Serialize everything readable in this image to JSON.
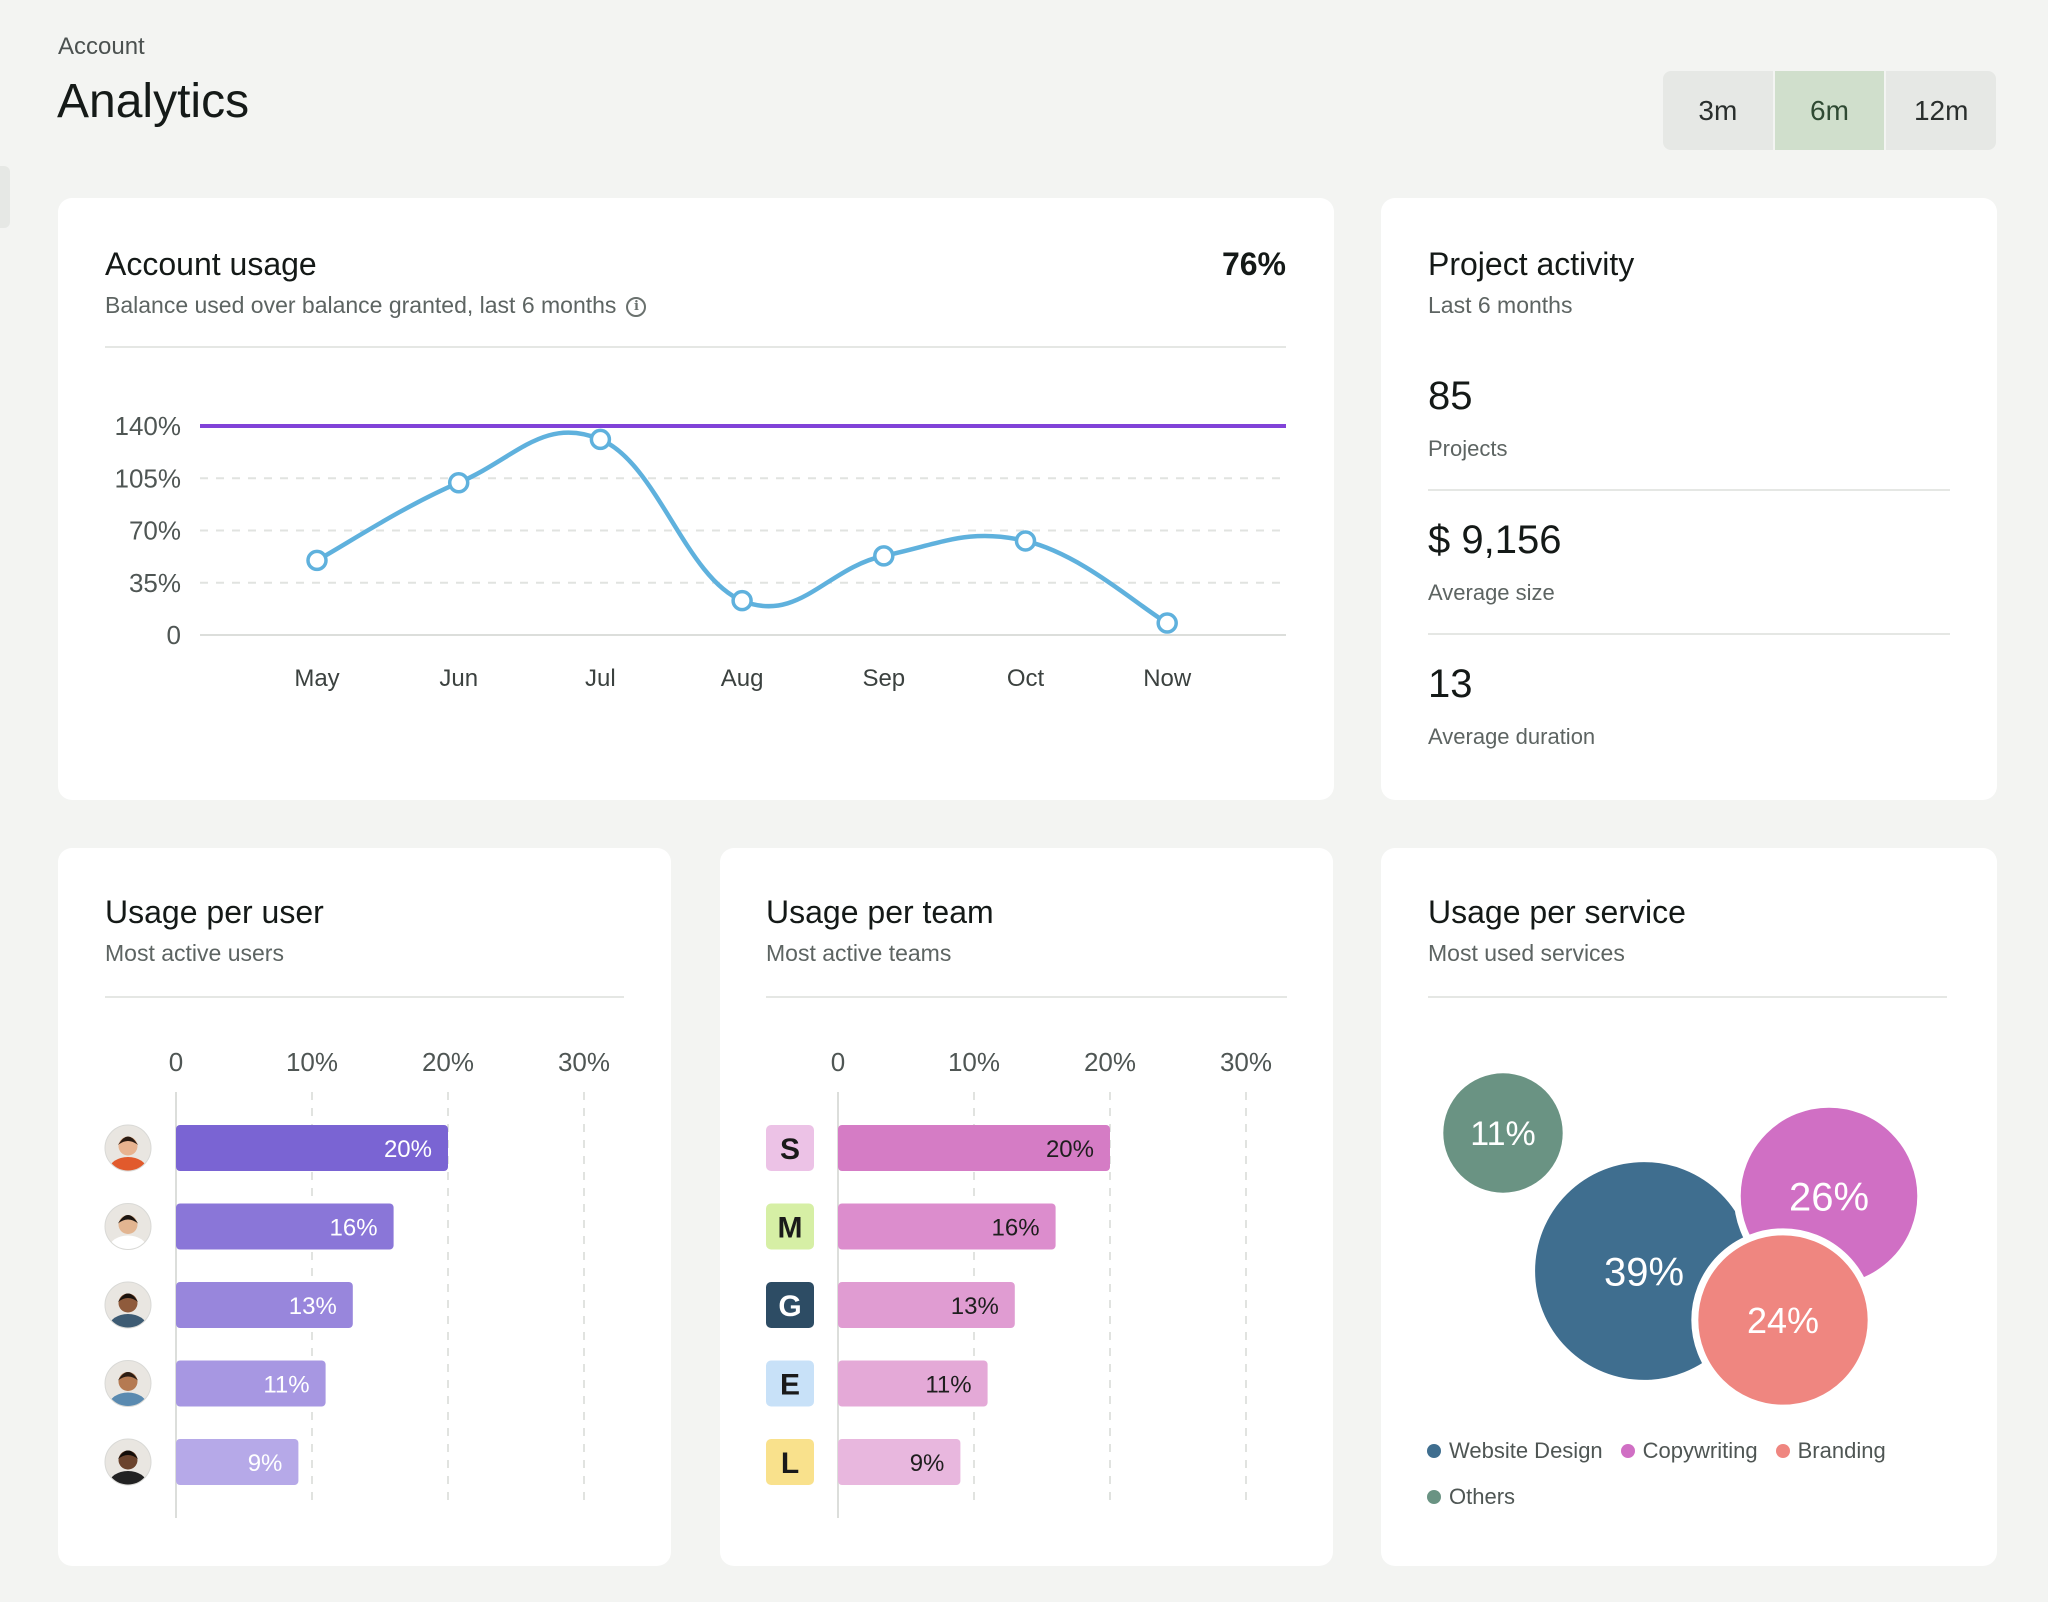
{
  "header": {
    "breadcrumb": "Account",
    "title": "Analytics",
    "ranges": [
      {
        "label": "3m",
        "active": false
      },
      {
        "label": "6m",
        "active": true
      },
      {
        "label": "12m",
        "active": false
      }
    ]
  },
  "usage": {
    "title": "Account usage",
    "subtitle": "Balance used over balance granted, last 6 months",
    "info_icon": "info-circle-icon",
    "headline": "76%",
    "chart_data": {
      "type": "line",
      "categories": [
        "May",
        "Jun",
        "Jul",
        "Aug",
        "Sep",
        "Oct",
        "Now"
      ],
      "series": [
        {
          "values": [
            50,
            102,
            131,
            23,
            53,
            63,
            8
          ],
          "color": "#5fb1dd"
        }
      ],
      "threshold": {
        "value": 140,
        "color": "#8142d8"
      },
      "ylim": [
        0,
        140
      ],
      "yticks": [
        {
          "v": 0,
          "label": "0"
        },
        {
          "v": 35,
          "label": "35%"
        },
        {
          "v": 70,
          "label": "70%"
        },
        {
          "v": 105,
          "label": "105%"
        },
        {
          "v": 140,
          "label": "140%"
        }
      ],
      "grid": true
    }
  },
  "activity": {
    "title": "Project activity",
    "subtitle": "Last 6 months",
    "metrics": [
      {
        "value": "85",
        "label": "Projects"
      },
      {
        "value": "$ 9,156",
        "label": "Average size"
      },
      {
        "value": "13",
        "label": "Average duration"
      }
    ]
  },
  "users": {
    "title": "Usage per user",
    "subtitle": "Most active users",
    "chart_data": {
      "type": "bar",
      "orientation": "horizontal",
      "xticks": [
        "0",
        "10%",
        "20%",
        "30%"
      ],
      "xlim": [
        0,
        30
      ],
      "values": [
        20,
        16,
        13,
        11,
        9
      ],
      "labels": [
        "20%",
        "16%",
        "13%",
        "11%",
        "9%"
      ],
      "colors": [
        "#7a64d3",
        "#8a76d8",
        "#9886dc",
        "#a797e2",
        "#b6a9e8"
      ],
      "avatars": [
        {
          "skin": "#e8b38f",
          "hair": "#2a1b12",
          "shirt": "#e15a2c"
        },
        {
          "skin": "#e2b591",
          "hair": "#1a1410",
          "shirt": "#ffffff"
        },
        {
          "skin": "#8f5b3c",
          "hair": "#1a120d",
          "shirt": "#3d5b73"
        },
        {
          "skin": "#b57a52",
          "hair": "#2b1d14",
          "shirt": "#5a8ab0"
        },
        {
          "skin": "#6b432d",
          "hair": "#120c09",
          "shirt": "#222222"
        }
      ]
    }
  },
  "teams": {
    "title": "Usage per team",
    "subtitle": "Most active teams",
    "chart_data": {
      "type": "bar",
      "orientation": "horizontal",
      "xticks": [
        "0",
        "10%",
        "20%",
        "30%"
      ],
      "xlim": [
        0,
        30
      ],
      "values": [
        20,
        16,
        13,
        11,
        9
      ],
      "labels": [
        "20%",
        "16%",
        "13%",
        "11%",
        "9%"
      ],
      "colors": [
        "#d57cc5",
        "#dc8dcd",
        "#e09cd2",
        "#e4a9d7",
        "#e8b7de"
      ],
      "badges": [
        {
          "letter": "S",
          "bg": "#ecc2e6",
          "fg": "#1a1a1a"
        },
        {
          "letter": "M",
          "bg": "#d6efa5",
          "fg": "#1a1a1a"
        },
        {
          "letter": "G",
          "bg": "#2d4c64",
          "fg": "#ffffff"
        },
        {
          "letter": "E",
          "bg": "#c8e1f8",
          "fg": "#1a1a1a"
        },
        {
          "letter": "L",
          "bg": "#f9e18c",
          "fg": "#1a1a1a"
        }
      ]
    }
  },
  "services": {
    "title": "Usage per service",
    "subtitle": "Most used services",
    "chart_data": {
      "type": "bubble",
      "items": [
        {
          "name": "Others",
          "value": 11,
          "label": "11%",
          "color": "#6a9383"
        },
        {
          "name": "Website Design",
          "value": 39,
          "label": "39%",
          "color": "#3f6e8f"
        },
        {
          "name": "Copywriting",
          "value": 26,
          "label": "26%",
          "color": "#d06fc4"
        },
        {
          "name": "Branding",
          "value": 24,
          "label": "24%",
          "color": "#ef8680"
        }
      ],
      "legend_order": [
        "Website Design",
        "Copywriting",
        "Branding",
        "Others"
      ]
    }
  }
}
